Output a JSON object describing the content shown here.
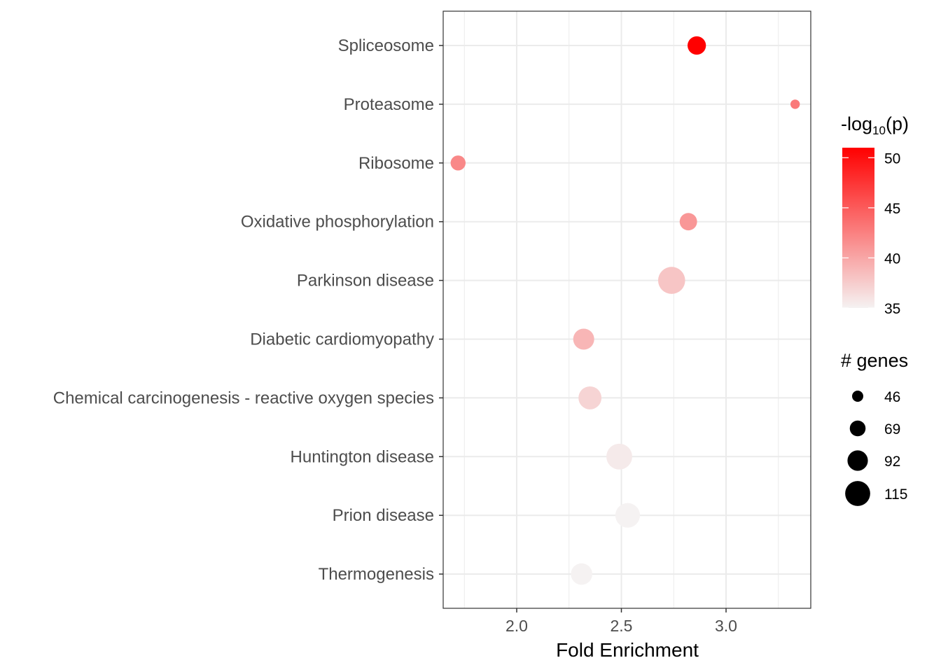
{
  "chart_data": {
    "type": "scatter",
    "xlabel": "Fold Enrichment",
    "ylabel": "",
    "xlim": [
      1.65,
      3.4
    ],
    "x_ticks": [
      2.0,
      2.5,
      3.0
    ],
    "x_tick_labels": [
      "2.0",
      "2.5",
      "3.0"
    ],
    "grid": true,
    "categories": [
      "Spliceosome",
      "Proteasome",
      "Ribosome",
      "Oxidative phosphorylation",
      "Parkinson disease",
      "Diabetic cardiomyopathy",
      "Chemical carcinogenesis - reactive oxygen species",
      "Huntington disease",
      "Prion disease",
      "Thermogenesis"
    ],
    "points": [
      {
        "category": "Spliceosome",
        "x": 2.86,
        "genes": 75,
        "neglog10p": 51
      },
      {
        "category": "Proteasome",
        "x": 3.33,
        "genes": 30,
        "neglog10p": 43
      },
      {
        "category": "Ribosome",
        "x": 1.72,
        "genes": 58,
        "neglog10p": 42
      },
      {
        "category": "Oxidative phosphorylation",
        "x": 2.82,
        "genes": 70,
        "neglog10p": 41
      },
      {
        "category": "Parkinson disease",
        "x": 2.74,
        "genes": 118,
        "neglog10p": 38
      },
      {
        "category": "Diabetic cardiomyopathy",
        "x": 2.32,
        "genes": 88,
        "neglog10p": 39
      },
      {
        "category": "Chemical carcinogenesis - reactive oxygen species",
        "x": 2.35,
        "genes": 98,
        "neglog10p": 37
      },
      {
        "category": "Huntington disease",
        "x": 2.49,
        "genes": 112,
        "neglog10p": 35.5
      },
      {
        "category": "Prion disease",
        "x": 2.53,
        "genes": 106,
        "neglog10p": 35
      },
      {
        "category": "Thermogenesis",
        "x": 2.31,
        "genes": 90,
        "neglog10p": 35
      }
    ],
    "color_legend": {
      "title_prefix": "-log",
      "title_sub": "10",
      "title_suffix": "(p)",
      "range": [
        35,
        51
      ],
      "ticks": [
        35,
        40,
        45,
        50
      ],
      "tick_labels": [
        "35",
        "40",
        "45",
        "50"
      ],
      "low_color": "#f5f2f2",
      "high_color": "#ff0000",
      "placement": "right"
    },
    "size_legend": {
      "title": "# genes",
      "values": [
        46,
        69,
        92,
        115
      ],
      "labels": [
        "46",
        "69",
        "92",
        "115"
      ],
      "placement": "right"
    },
    "colors": {
      "panel_border": "#333333",
      "grid": "#ebebeb",
      "point_default": "#000000"
    }
  }
}
